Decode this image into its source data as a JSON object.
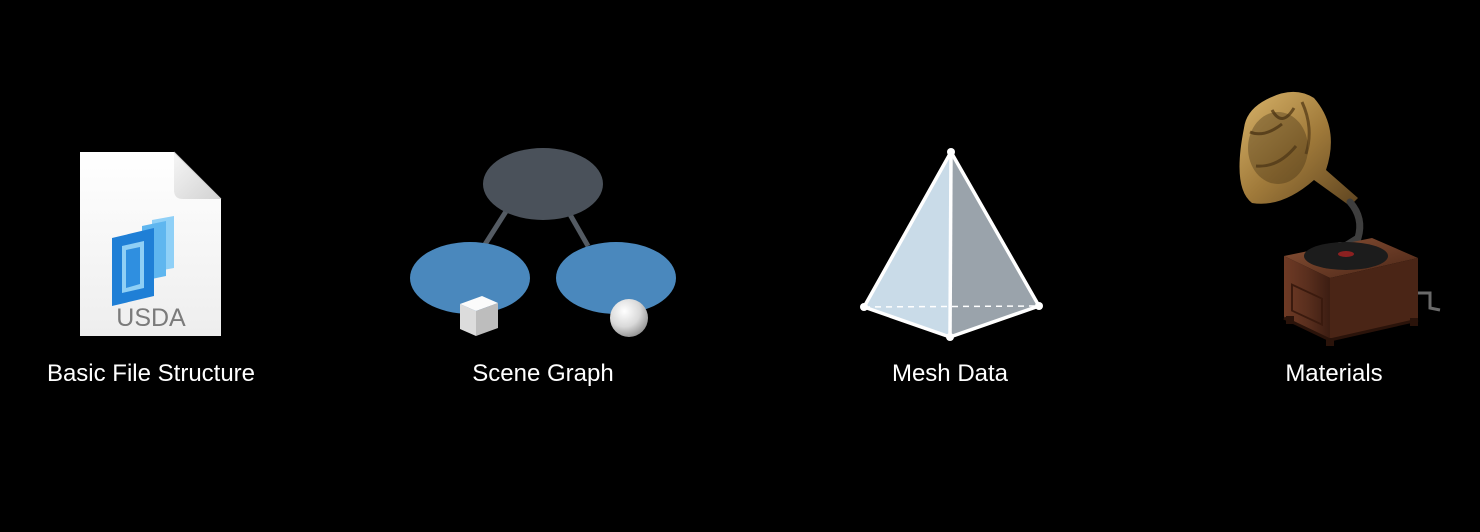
{
  "items": [
    {
      "label": "Basic File Structure",
      "icon": "usda-file-icon",
      "file_badge": "USDA",
      "accent_color": "#2f8fe0"
    },
    {
      "label": "Scene Graph",
      "icon": "scene-graph-icon",
      "root_color": "#4a515a",
      "child_color": "#4a88bd"
    },
    {
      "label": "Mesh Data",
      "icon": "pyramid-mesh-icon",
      "face_color": "#c9dbe8"
    },
    {
      "label": "Materials",
      "icon": "gramophone-icon",
      "horn_color": "#a07a3a",
      "cabinet_color": "#5a2f1e"
    }
  ]
}
